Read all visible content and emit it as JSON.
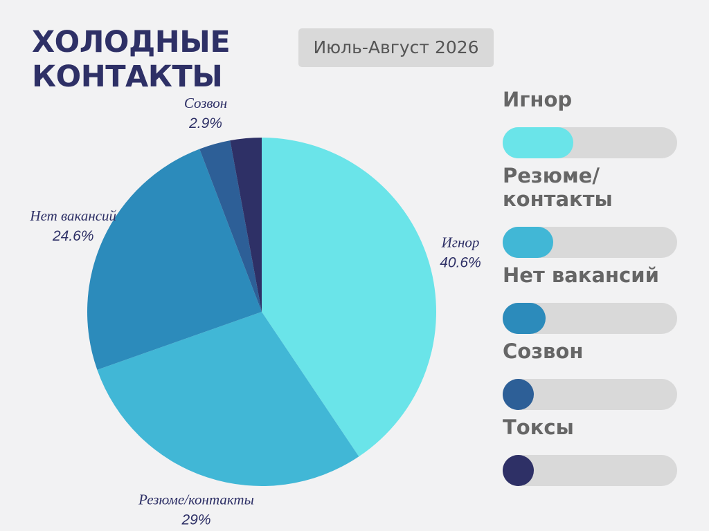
{
  "chart_data": {
    "type": "pie",
    "title": "ХОЛОДНЫЕ КОНТАКТЫ",
    "subtitle": "Июль-Август 2026",
    "categories": [
      "Игнор",
      "Резюме/контакты",
      "Нет вакансий",
      "Созвон",
      "Токсы"
    ],
    "values": [
      40.6,
      29,
      24.6,
      2.9,
      2.9
    ],
    "value_labels": [
      "40.6%",
      "29%",
      "24.6%",
      "2.9%",
      null
    ],
    "colors": [
      "#6ae4e9",
      "#41b7d6",
      "#2c8bbb",
      "#2d5f97",
      "#2e3066"
    ]
  }
}
